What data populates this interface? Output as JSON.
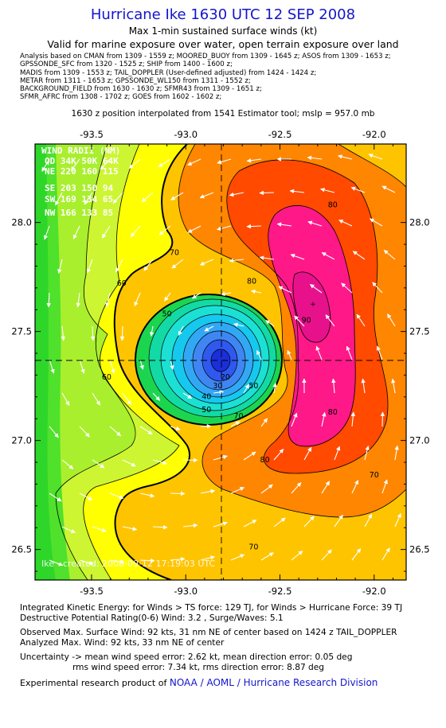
{
  "header": {
    "title": "Hurricane Ike 1630 UTC 12 SEP 2008",
    "subtitle": "Max 1-min sustained surface winds (kt)",
    "valid_note": "Valid for marine exposure over water, open terrain exposure over land",
    "source_lines": [
      "Analysis based on  CMAN from 1309 - 1559 z;  MOORED_BUOY from 1309 - 1645 z;  ASOS from 1309 - 1653 z;",
      "GPSSONDE_SFC from 1320 - 1525 z;  SHIP from 1400 - 1600 z;",
      "MADIS from 1309 - 1553 z;  TAIL_DOPPLER (User-defined adjusted) from 1424 - 1424 z;",
      "METAR from 1311 - 1653 z;  GPSSONDE_WL150 from 1311 - 1552 z;",
      "BACKGROUND_FIELD from 1630 - 1630 z;  SFMR43 from 1309 - 1651 z;",
      "SFMR_AFRC from 1308 - 1702 z;  GOES from 1602 - 1602 z;"
    ],
    "position_note": "1630 z position interpolated from 1541 Estimator tool; mslp = 957.0 mb"
  },
  "wind_radii": {
    "title": "WIND RADII (NM)",
    "header": "QD  34K  50K  64K",
    "rows": [
      "NE  220  160  115",
      "SE  203  150   94",
      "SW  169  134   65",
      "NW  166  133   85"
    ]
  },
  "watermark": "Ike - created: 2008-09-12 17:19:03 UTC",
  "chart_data": {
    "type": "contour",
    "title": "Hurricane Ike 1630 UTC 12 SEP 2008",
    "variable": "Max 1-min sustained surface winds (kt)",
    "x_ticks": [
      "-93.5",
      "-93.0",
      "-92.5",
      "-92.0"
    ],
    "x_tick_values": [
      -93.5,
      -93.0,
      -92.5,
      -92.0
    ],
    "y_ticks": [
      "28.0",
      "27.5",
      "27.0",
      "26.5"
    ],
    "y_tick_values": [
      28.0,
      27.5,
      27.0,
      26.5
    ],
    "xlim": [
      -93.8,
      -91.83
    ],
    "ylim": [
      26.36,
      28.36
    ],
    "center": {
      "lon": -92.82,
      "lat": 27.35
    },
    "max_wind_location": {
      "lon": -92.35,
      "lat": 27.62
    },
    "contour_interval_kt": 5,
    "max_wind_kt": 92,
    "contour_labels": [
      {
        "text": "60",
        "lon": -93.34,
        "lat": 27.71
      },
      {
        "text": "60",
        "lon": -93.42,
        "lat": 27.28
      },
      {
        "text": "70",
        "lon": -93.06,
        "lat": 27.85
      },
      {
        "text": "70",
        "lon": -92.72,
        "lat": 27.1
      },
      {
        "text": "70",
        "lon": -92.0,
        "lat": 26.83
      },
      {
        "text": "70",
        "lon": -92.64,
        "lat": 26.5
      },
      {
        "text": "80",
        "lon": -92.65,
        "lat": 27.72
      },
      {
        "text": "80",
        "lon": -92.22,
        "lat": 28.07
      },
      {
        "text": "80",
        "lon": -92.22,
        "lat": 27.12
      },
      {
        "text": "80",
        "lon": -92.58,
        "lat": 26.9
      },
      {
        "text": "90",
        "lon": -92.36,
        "lat": 27.54
      },
      {
        "text": "50",
        "lon": -93.1,
        "lat": 27.57
      },
      {
        "text": "50",
        "lon": -92.64,
        "lat": 27.24
      },
      {
        "text": "50",
        "lon": -92.89,
        "lat": 27.13
      },
      {
        "text": "40",
        "lon": -92.89,
        "lat": 27.19
      },
      {
        "text": "30",
        "lon": -92.83,
        "lat": 27.24
      },
      {
        "text": "20",
        "lon": -92.79,
        "lat": 27.28
      }
    ],
    "levels": [
      {
        "kt": 10,
        "color": "#1a2fd9"
      },
      {
        "kt": 15,
        "color": "#2f58ee"
      },
      {
        "kt": 20,
        "color": "#3f86f2"
      },
      {
        "kt": 25,
        "color": "#32a8f5"
      },
      {
        "kt": 30,
        "color": "#17c8ee"
      },
      {
        "kt": 35,
        "color": "#1ce0d4"
      },
      {
        "kt": 40,
        "color": "#13d9a4"
      },
      {
        "kt": 45,
        "color": "#1cd54f"
      },
      {
        "kt": 50,
        "color": "#2fd62a"
      },
      {
        "kt": 55,
        "color": "#4fe12b"
      },
      {
        "kt": 60,
        "color": "#a9ef2e"
      },
      {
        "kt": 65,
        "color": "#cdf532"
      },
      {
        "kt": 70,
        "color": "#ffff00"
      },
      {
        "kt": 75,
        "color": "#ffc400"
      },
      {
        "kt": 80,
        "color": "#ff8600"
      },
      {
        "kt": 85,
        "color": "#ff4a00"
      },
      {
        "kt": 90,
        "color": "#ff1888"
      },
      {
        "kt": 95,
        "color": "#e8118c"
      }
    ]
  },
  "footer": {
    "ike": "Integrated Kinetic Energy:  for Winds > TS force: 129 TJ,  for Winds > Hurricane Force: 39 TJ",
    "dpr": "Destructive Potential Rating(0-6)   Wind: 3.2 , Surge/Waves: 5.1",
    "observed": "Observed Max. Surface Wind: 92 kts, 31 nm NE of center based on 1424 z TAIL_DOPPLER",
    "analyzed": "Analyzed Max. Wind: 92 kts, 33 nm NE of center",
    "uncert1": "Uncertainty -> mean wind speed error: 2.62 kt,   mean direction error: 0.05 deg",
    "uncert2": "rms wind speed error: 7.34 kt,   rms direction error: 8.87 deg",
    "credit_prefix": "Experimental research product of",
    "credit_org": "NOAA / AOML / Hurricane Research Division"
  }
}
